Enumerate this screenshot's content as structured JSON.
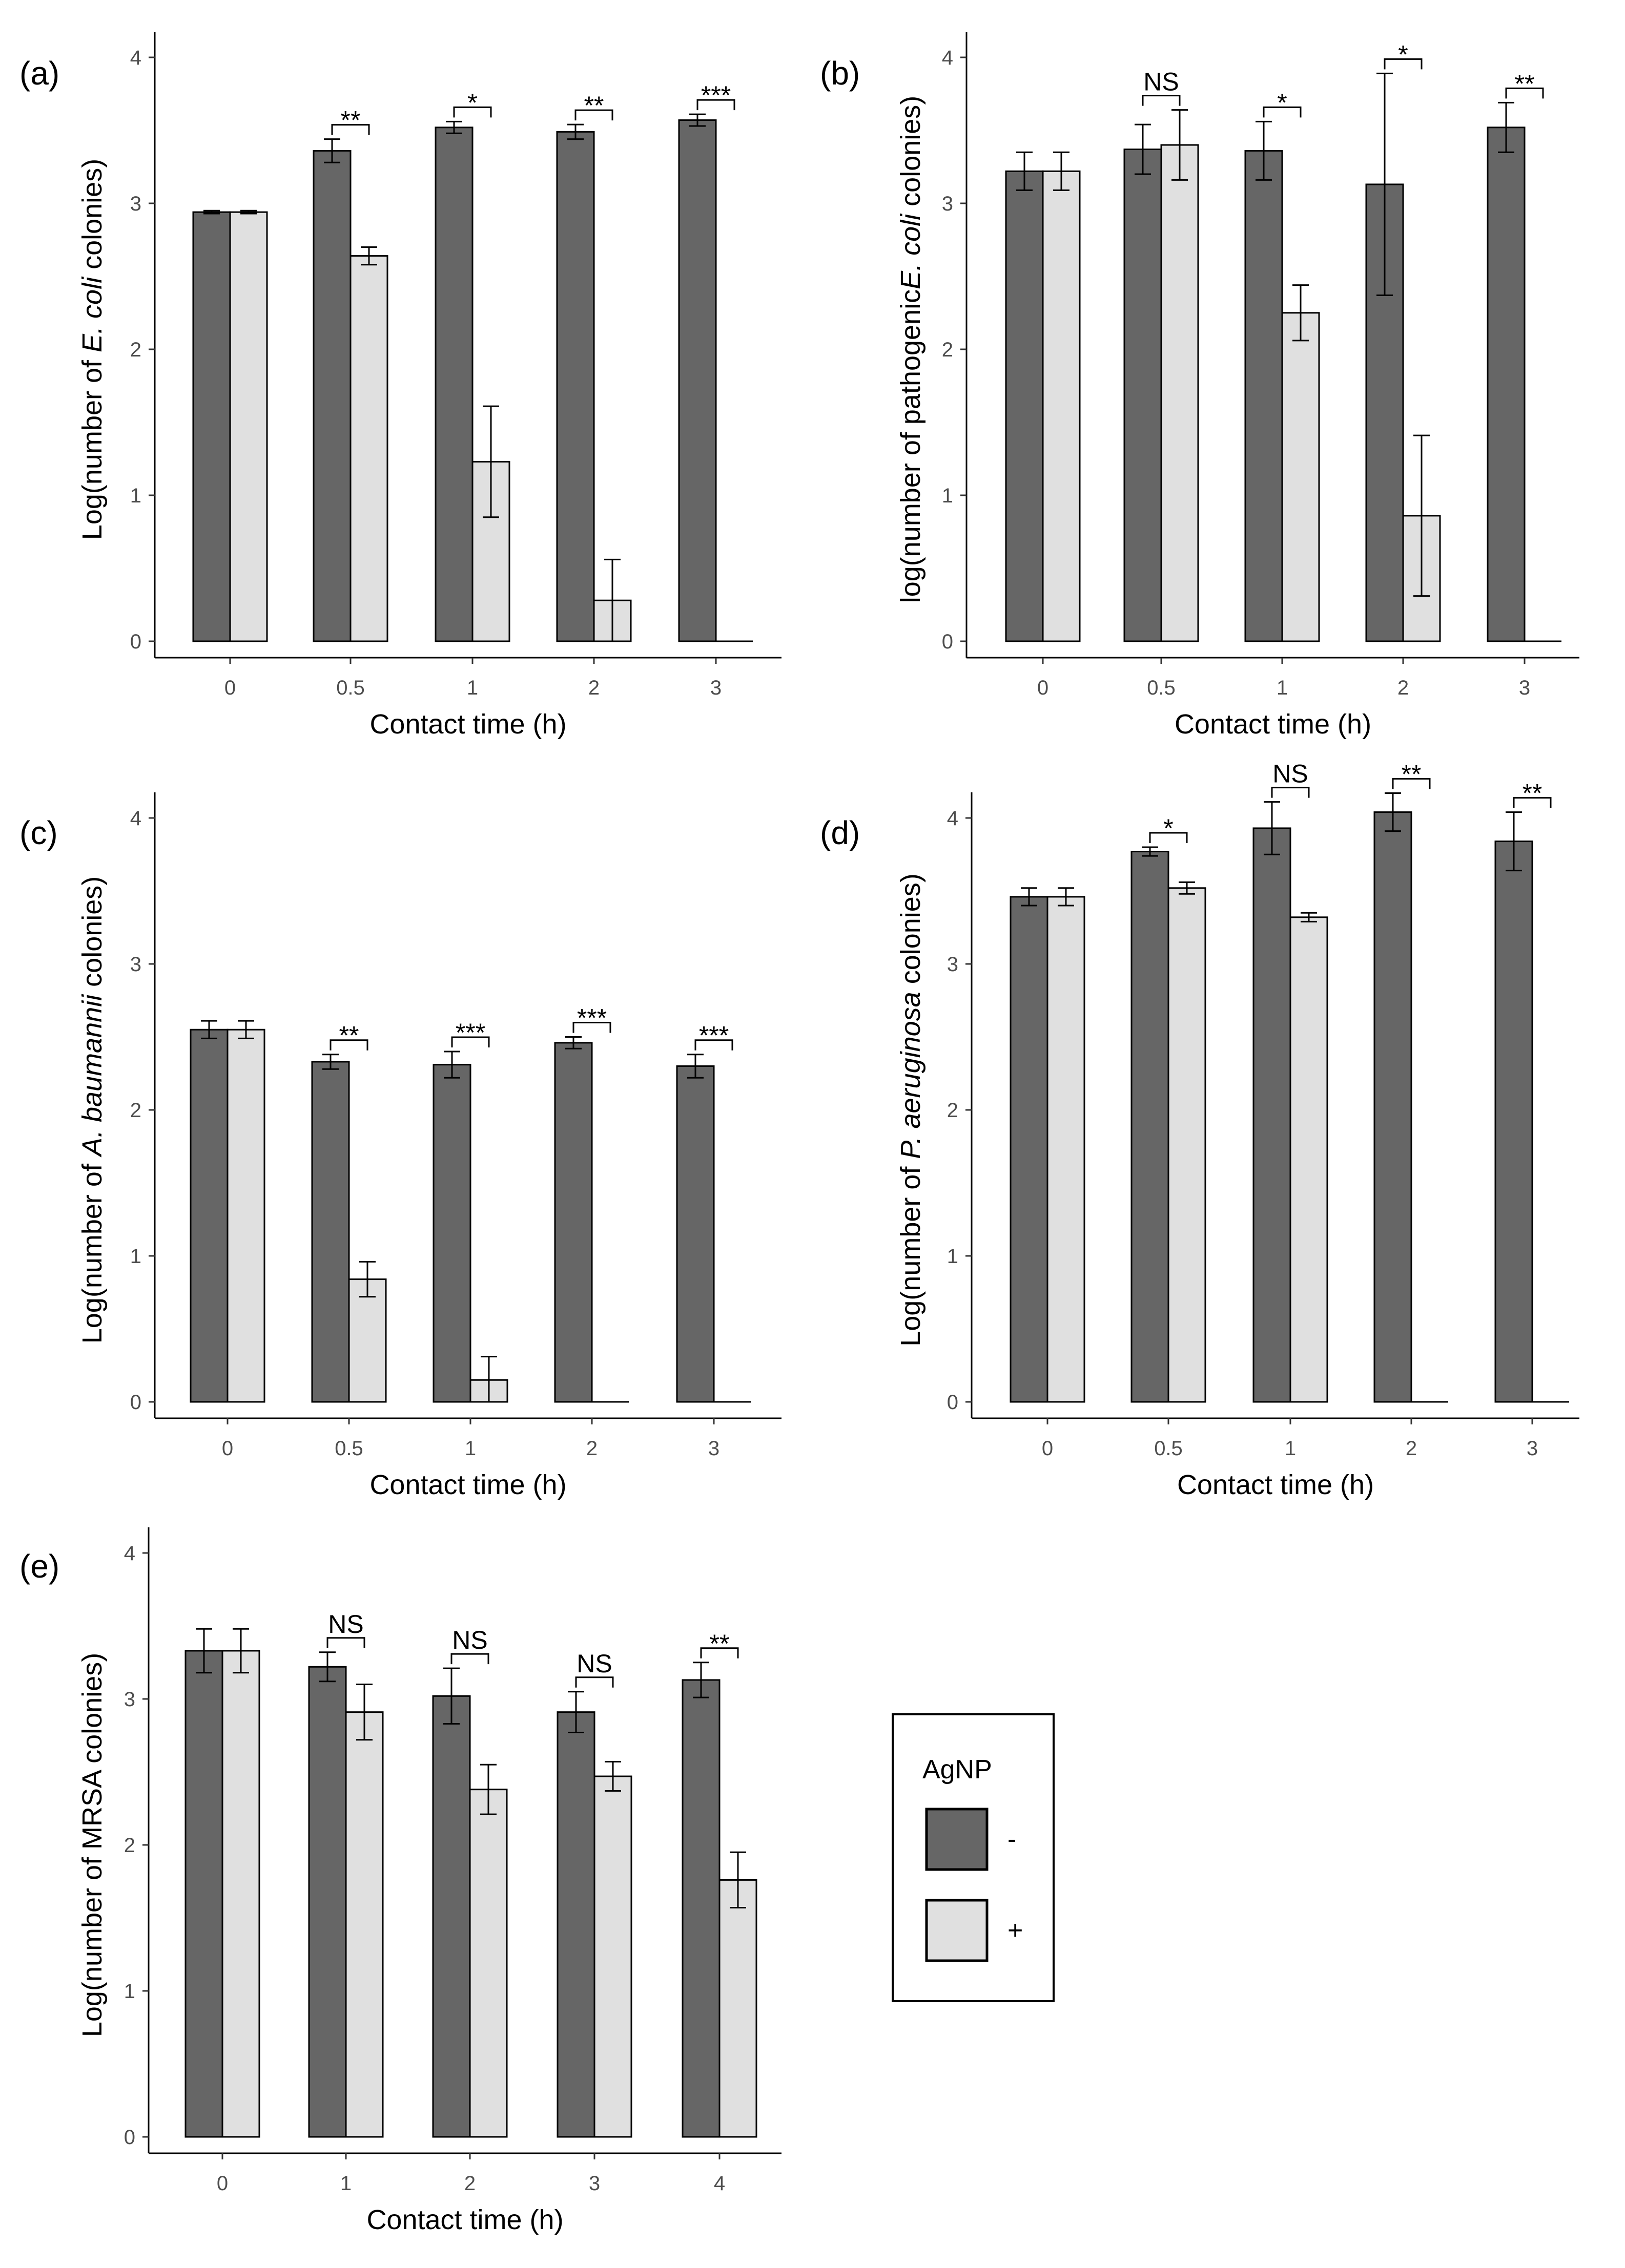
{
  "legend": {
    "title": "AgNP",
    "entries": [
      {
        "label": "-",
        "color": "#666666"
      },
      {
        "label": "+",
        "color": "#e0e0e0"
      }
    ]
  },
  "chart_data": [
    {
      "id": "a",
      "type": "bar",
      "panel_label": "(a)",
      "xlabel": "Contact time (h)",
      "ylabel_pre": "Log(number of ",
      "ylabel_italic": "E. coli",
      "ylabel_post": " colonies)",
      "ylim": [
        0,
        4
      ],
      "yticks": [
        "0",
        "1",
        "2",
        "3",
        "4"
      ],
      "categories": [
        "0",
        "0.5",
        "1",
        "2",
        "3"
      ],
      "series": [
        {
          "name": "-",
          "values": [
            2.94,
            3.36,
            3.52,
            3.49,
            3.57
          ],
          "errors": [
            0.01,
            0.08,
            0.04,
            0.05,
            0.04
          ]
        },
        {
          "name": "+",
          "values": [
            2.94,
            2.64,
            1.23,
            0.28,
            0
          ],
          "errors": [
            0.01,
            0.06,
            0.38,
            0.28,
            0
          ]
        }
      ],
      "significance": [
        "",
        "**",
        "*",
        "**",
        "***"
      ]
    },
    {
      "id": "b",
      "type": "bar",
      "panel_label": "(b)",
      "xlabel": "Contact time (h)",
      "ylabel_pre": "log(number of pathogenic",
      "ylabel_italic": "E. coli",
      "ylabel_post": " colonies)",
      "ylim": [
        0,
        4
      ],
      "yticks": [
        "0",
        "1",
        "2",
        "3",
        "4"
      ],
      "categories": [
        "0",
        "0.5",
        "1",
        "2",
        "3"
      ],
      "series": [
        {
          "name": "-",
          "values": [
            3.22,
            3.37,
            3.36,
            3.13,
            3.52
          ],
          "errors": [
            0.13,
            0.17,
            0.2,
            0.76,
            0.17
          ]
        },
        {
          "name": "+",
          "values": [
            3.22,
            3.4,
            2.25,
            0.86,
            0
          ],
          "errors": [
            0.13,
            0.24,
            0.19,
            0.55,
            0
          ]
        }
      ],
      "significance": [
        "",
        "NS",
        "*",
        "*",
        "**"
      ]
    },
    {
      "id": "c",
      "type": "bar",
      "panel_label": "(c)",
      "xlabel": "Contact time (h)",
      "ylabel_pre": "Log(number of ",
      "ylabel_italic": "A. baumannii",
      "ylabel_post": " colonies)",
      "ylim": [
        0,
        4
      ],
      "yticks": [
        "0",
        "1",
        "2",
        "3",
        "4"
      ],
      "categories": [
        "0",
        "0.5",
        "1",
        "2",
        "3"
      ],
      "series": [
        {
          "name": "-",
          "values": [
            2.55,
            2.33,
            2.31,
            2.46,
            2.3
          ],
          "errors": [
            0.06,
            0.05,
            0.09,
            0.04,
            0.08
          ]
        },
        {
          "name": "+",
          "values": [
            2.55,
            0.84,
            0.15,
            0,
            0
          ],
          "errors": [
            0.06,
            0.12,
            0.16,
            0,
            0
          ]
        }
      ],
      "significance": [
        "",
        "**",
        "***",
        "***",
        "***"
      ]
    },
    {
      "id": "d",
      "type": "bar",
      "panel_label": "(d)",
      "xlabel": "Contact time (h)",
      "ylabel_pre": "Log(number of ",
      "ylabel_italic": "P. aeruginosa",
      "ylabel_post": " colonies)",
      "ylim": [
        0,
        4
      ],
      "yticks": [
        "0",
        "1",
        "2",
        "3",
        "4"
      ],
      "categories": [
        "0",
        "0.5",
        "1",
        "2",
        "3"
      ],
      "series": [
        {
          "name": "-",
          "values": [
            3.46,
            3.77,
            3.93,
            4.04,
            3.84
          ],
          "errors": [
            0.06,
            0.03,
            0.18,
            0.13,
            0.2
          ]
        },
        {
          "name": "+",
          "values": [
            3.46,
            3.52,
            3.32,
            0,
            0
          ],
          "errors": [
            0.06,
            0.04,
            0.03,
            0,
            0
          ]
        }
      ],
      "significance": [
        "",
        "*",
        "NS",
        "**",
        "**"
      ]
    },
    {
      "id": "e",
      "type": "bar",
      "panel_label": "(e)",
      "xlabel": "Contact time (h)",
      "ylabel_pre": "Log(number of MRSA colonies)",
      "ylabel_italic": "",
      "ylabel_post": "",
      "ylim": [
        0,
        4
      ],
      "yticks": [
        "0",
        "1",
        "2",
        "3",
        "4"
      ],
      "categories": [
        "0",
        "1",
        "2",
        "3",
        "4"
      ],
      "series": [
        {
          "name": "-",
          "values": [
            3.33,
            3.22,
            3.02,
            2.91,
            3.13
          ],
          "errors": [
            0.15,
            0.1,
            0.19,
            0.14,
            0.12
          ]
        },
        {
          "name": "+",
          "values": [
            3.33,
            2.91,
            2.38,
            2.47,
            1.76
          ],
          "errors": [
            0.15,
            0.19,
            0.17,
            0.1,
            0.19
          ]
        }
      ],
      "significance": [
        "",
        "NS",
        "NS",
        "NS",
        "**"
      ]
    }
  ]
}
